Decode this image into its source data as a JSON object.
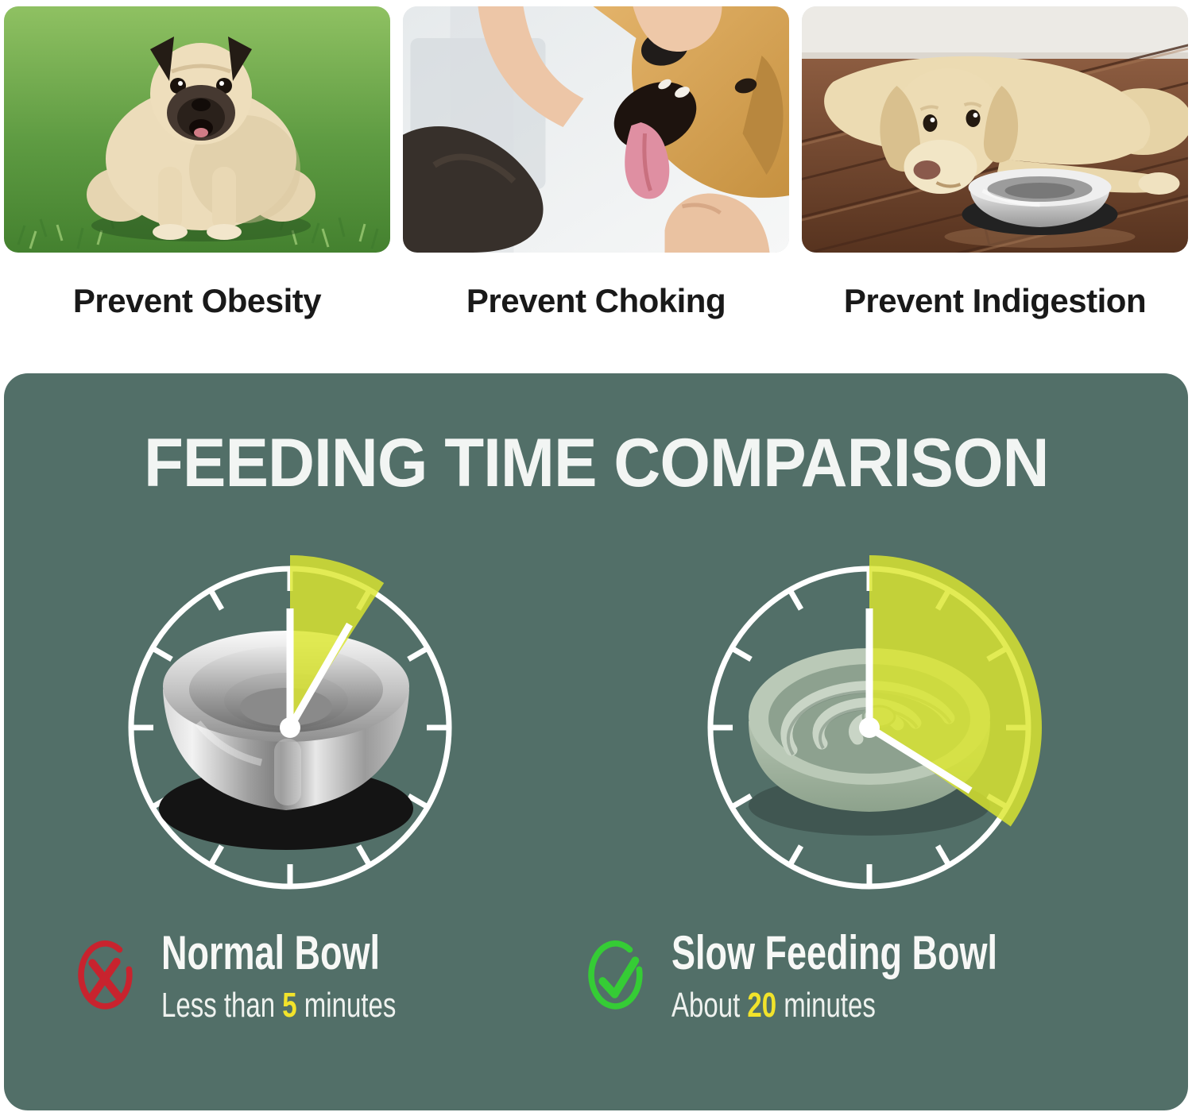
{
  "benefits": [
    {
      "caption": "Prevent Obesity",
      "photo": "obese-pug-on-grass"
    },
    {
      "caption": "Prevent Choking",
      "photo": "hand-checking-dog-mouth"
    },
    {
      "caption": "Prevent Indigestion",
      "photo": "sad-dog-lying-by-bowl"
    }
  ],
  "comparison": {
    "title": "FEEDING TIME COMPARISON",
    "panel_color": "#526F68",
    "wedge_color": "#DCE62E",
    "highlight_color": "#F2E32B",
    "items": [
      {
        "name": "Normal Bowl",
        "prefix": "Less than ",
        "value": "5",
        "suffix": " minutes",
        "minutes": 5,
        "wedge_deg": 33,
        "icon": "cross-icon",
        "icon_color": "#C8232E",
        "bowl": "stainless-steel-bowl"
      },
      {
        "name": "Slow Feeding Bowl",
        "prefix": "About ",
        "value": "20",
        "suffix": " minutes",
        "minutes": 20,
        "wedge_deg": 125,
        "icon": "check-icon",
        "icon_color": "#35CC35",
        "bowl": "slow-feeder-maze-bowl"
      }
    ]
  }
}
